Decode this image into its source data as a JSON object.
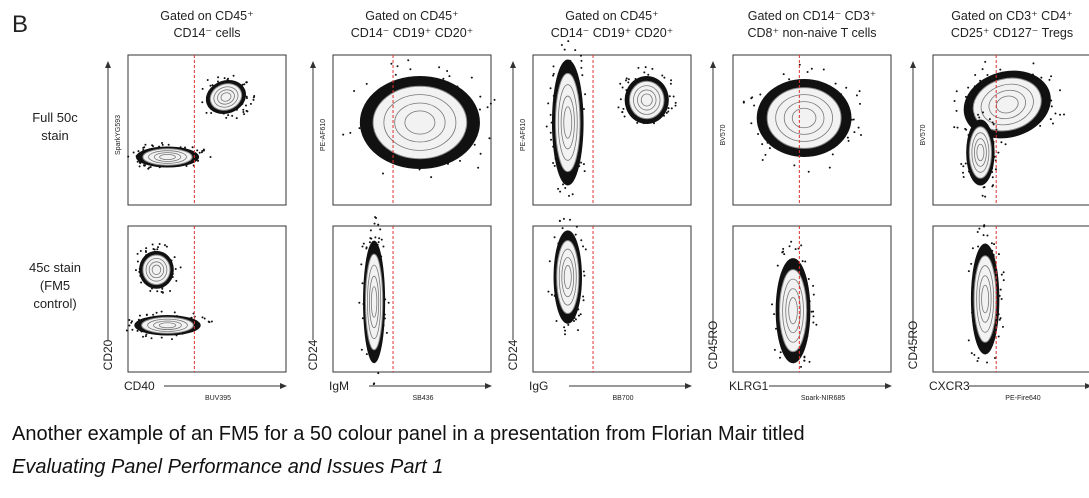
{
  "figure": {
    "label": "B",
    "row_labels": [
      [
        "Full 50c",
        "stain"
      ],
      [
        "45c stain",
        "(FM5",
        "control)"
      ]
    ],
    "panels": [
      {
        "title": [
          "Gated on CD45⁺",
          "CD14⁻ cells"
        ],
        "y_channel": "SparkYG593",
        "y_label": "CD20",
        "x_label": "CD40",
        "x_channel": "BUV395"
      },
      {
        "title": [
          "Gated on CD45⁺",
          "CD14⁻ CD19⁺ CD20⁺"
        ],
        "y_channel": "PE-AF610",
        "y_label": "CD24",
        "x_label": "IgM",
        "x_channel": "SB436"
      },
      {
        "title": [
          "Gated on CD45⁺",
          "CD14⁻ CD19⁺ CD20⁺"
        ],
        "y_channel": "PE-AF610",
        "y_label": "CD24",
        "x_label": "IgG",
        "x_channel": "BB700"
      },
      {
        "title": [
          "Gated on CD14⁻ CD3⁺",
          "CD8⁺ non-naive T cells"
        ],
        "y_channel": "BV570",
        "y_label": "CD45RO",
        "x_label": "KLRG1",
        "x_channel": "Spark-NIR685"
      },
      {
        "title": [
          "Gated on CD3⁺ CD4⁺",
          "CD25⁺ CD127⁻ Tregs"
        ],
        "y_channel": "BV570",
        "y_label": "CD45RO",
        "x_label": "CXCR3",
        "x_channel": "PE-Fire640"
      }
    ]
  },
  "caption": {
    "text": "Another example of an FM5 for a 50 colour panel in a presentation from Florian Mair titled",
    "title": "Evaluating Panel Performance and Issues Part 1"
  }
}
